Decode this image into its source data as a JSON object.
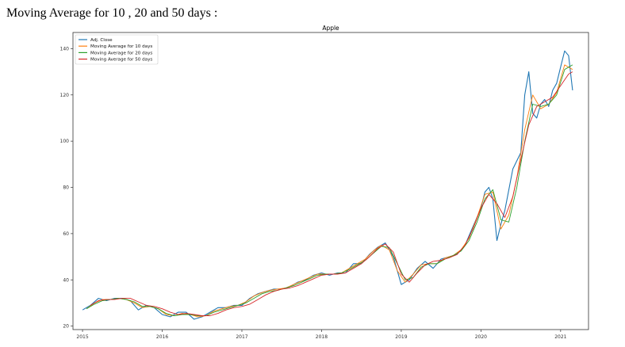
{
  "page": {
    "heading": "Moving Average for 10 , 20 and 50 days :"
  },
  "chart_data": {
    "type": "line",
    "title": "Apple",
    "xlabel": "",
    "ylabel": "",
    "xlim": [
      2014.88,
      2021.35
    ],
    "ylim": [
      18.5,
      147
    ],
    "xticks": [
      2015,
      2016,
      2017,
      2018,
      2019,
      2020,
      2021
    ],
    "xtick_labels": [
      "2015",
      "2016",
      "2017",
      "2018",
      "2019",
      "2020",
      "2021"
    ],
    "yticks": [
      20,
      40,
      60,
      80,
      100,
      120,
      140
    ],
    "ytick_labels": [
      "20",
      "40",
      "60",
      "80",
      "100",
      "120",
      "140"
    ],
    "grid": false,
    "legend_position": "top-left",
    "series": [
      {
        "name": "Adj. Close",
        "color": "#1f77b4",
        "x": [
          2015.0,
          2015.1,
          2015.2,
          2015.3,
          2015.4,
          2015.5,
          2015.6,
          2015.7,
          2015.8,
          2015.9,
          2016.0,
          2016.1,
          2016.2,
          2016.3,
          2016.4,
          2016.5,
          2016.6,
          2016.7,
          2016.8,
          2016.9,
          2017.0,
          2017.1,
          2017.2,
          2017.3,
          2017.4,
          2017.5,
          2017.6,
          2017.7,
          2017.8,
          2017.9,
          2018.0,
          2018.1,
          2018.2,
          2018.3,
          2018.4,
          2018.5,
          2018.6,
          2018.7,
          2018.8,
          2018.9,
          2019.0,
          2019.1,
          2019.2,
          2019.3,
          2019.4,
          2019.5,
          2019.6,
          2019.7,
          2019.8,
          2019.9,
          2020.0,
          2020.05,
          2020.1,
          2020.15,
          2020.2,
          2020.25,
          2020.3,
          2020.4,
          2020.5,
          2020.55,
          2020.6,
          2020.65,
          2020.7,
          2020.75,
          2020.8,
          2020.85,
          2020.9,
          2020.95,
          2021.0,
          2021.05,
          2021.1,
          2021.15
        ],
        "values": [
          27,
          29,
          32,
          31,
          32,
          32,
          31,
          27,
          29,
          28,
          25,
          24,
          26,
          26,
          23,
          24,
          26,
          28,
          28,
          29,
          29,
          32,
          34,
          35,
          36,
          36,
          37,
          39,
          40,
          42,
          43,
          42,
          43,
          43,
          47,
          47,
          51,
          54,
          56,
          50,
          38,
          40,
          45,
          48,
          45,
          49,
          50,
          51,
          55,
          63,
          71,
          78,
          80,
          75,
          57,
          64,
          70,
          88,
          95,
          120,
          130,
          112,
          110,
          116,
          118,
          115,
          122,
          125,
          132,
          139,
          137,
          122
        ]
      },
      {
        "name": "Moving Average for 10 days",
        "color": "#ff7f0e",
        "x": [
          2015.05,
          2015.15,
          2015.25,
          2015.35,
          2015.45,
          2015.55,
          2015.65,
          2015.75,
          2015.85,
          2015.95,
          2016.05,
          2016.15,
          2016.25,
          2016.35,
          2016.45,
          2016.55,
          2016.65,
          2016.75,
          2016.85,
          2016.95,
          2017.05,
          2017.15,
          2017.25,
          2017.35,
          2017.45,
          2017.55,
          2017.65,
          2017.75,
          2017.85,
          2017.95,
          2018.05,
          2018.15,
          2018.25,
          2018.35,
          2018.45,
          2018.55,
          2018.65,
          2018.75,
          2018.85,
          2018.95,
          2019.05,
          2019.15,
          2019.25,
          2019.35,
          2019.45,
          2019.55,
          2019.65,
          2019.75,
          2019.85,
          2019.95,
          2020.05,
          2020.15,
          2020.25,
          2020.35,
          2020.45,
          2020.55,
          2020.65,
          2020.75,
          2020.85,
          2020.95,
          2021.05,
          2021.15
        ],
        "values": [
          27.5,
          30,
          31.5,
          31.5,
          32,
          31.5,
          30,
          28,
          28.5,
          27.5,
          25,
          24.5,
          25.5,
          25,
          24,
          24.5,
          26.5,
          27.5,
          28.5,
          29,
          30.5,
          33,
          34.5,
          35.5,
          36,
          36.5,
          38,
          39.5,
          41,
          42.5,
          42.5,
          42.5,
          43,
          45,
          47,
          49,
          52.5,
          55,
          53,
          44,
          39,
          42.5,
          46.5,
          47,
          47,
          49.5,
          50.5,
          53,
          58,
          67,
          77,
          78,
          62,
          68,
          84,
          105,
          120,
          114,
          116,
          121,
          133,
          131
        ]
      },
      {
        "name": "Moving Average for 20 days",
        "color": "#2ca02c",
        "x": [
          2015.05,
          2015.15,
          2015.25,
          2015.35,
          2015.45,
          2015.55,
          2015.65,
          2015.75,
          2015.85,
          2015.95,
          2016.05,
          2016.15,
          2016.25,
          2016.35,
          2016.45,
          2016.55,
          2016.65,
          2016.75,
          2016.85,
          2016.95,
          2017.05,
          2017.15,
          2017.25,
          2017.35,
          2017.45,
          2017.55,
          2017.65,
          2017.75,
          2017.85,
          2017.95,
          2018.05,
          2018.15,
          2018.25,
          2018.35,
          2018.45,
          2018.55,
          2018.65,
          2018.75,
          2018.85,
          2018.95,
          2019.05,
          2019.15,
          2019.25,
          2019.35,
          2019.45,
          2019.55,
          2019.65,
          2019.75,
          2019.85,
          2019.95,
          2020.05,
          2020.15,
          2020.25,
          2020.35,
          2020.45,
          2020.55,
          2020.65,
          2020.75,
          2020.85,
          2020.95,
          2021.05,
          2021.15
        ],
        "values": [
          27.5,
          29.5,
          31,
          31.5,
          32,
          31.5,
          30.5,
          28.5,
          28.5,
          27.5,
          25.5,
          24.5,
          25,
          25,
          24.5,
          24.5,
          26,
          27,
          28,
          29,
          30,
          32,
          34,
          35,
          35.5,
          36.5,
          37.5,
          39,
          40.5,
          42,
          42.5,
          42.5,
          43,
          44.5,
          46.5,
          48.5,
          51.5,
          54.5,
          54,
          47,
          40,
          41,
          45.5,
          47,
          47,
          49,
          50.5,
          52.5,
          57,
          65,
          75,
          79,
          66,
          65,
          80,
          100,
          116,
          115,
          116,
          120,
          131,
          133
        ]
      },
      {
        "name": "Moving Average for 50 days",
        "color": "#d62728",
        "x": [
          2015.1,
          2015.2,
          2015.3,
          2015.4,
          2015.5,
          2015.6,
          2015.7,
          2015.8,
          2015.9,
          2016.0,
          2016.1,
          2016.2,
          2016.3,
          2016.4,
          2016.5,
          2016.6,
          2016.7,
          2016.8,
          2016.9,
          2017.0,
          2017.1,
          2017.2,
          2017.3,
          2017.4,
          2017.5,
          2017.6,
          2017.7,
          2017.8,
          2017.9,
          2018.0,
          2018.1,
          2018.2,
          2018.3,
          2018.4,
          2018.5,
          2018.6,
          2018.7,
          2018.8,
          2018.9,
          2019.0,
          2019.1,
          2019.2,
          2019.3,
          2019.4,
          2019.5,
          2019.6,
          2019.7,
          2019.8,
          2019.9,
          2020.0,
          2020.1,
          2020.2,
          2020.3,
          2020.4,
          2020.5,
          2020.6,
          2020.7,
          2020.8,
          2020.9,
          2021.0,
          2021.1,
          2021.15
        ],
        "values": [
          29,
          31,
          31.5,
          31.5,
          32,
          32,
          30.5,
          29,
          28.5,
          27.5,
          26,
          25,
          25.5,
          25,
          24.5,
          24.5,
          25.5,
          27,
          28,
          28.5,
          29.5,
          31.5,
          33.5,
          35,
          36,
          36.5,
          37.5,
          39,
          40.5,
          42,
          42.5,
          42.5,
          43,
          45,
          47,
          50,
          53.5,
          55.5,
          52,
          42.5,
          39,
          43,
          46.5,
          48,
          48.5,
          49.5,
          51,
          55,
          62,
          71,
          77,
          73,
          67,
          76,
          92,
          107,
          115,
          117,
          119,
          124,
          129,
          130
        ]
      }
    ]
  }
}
